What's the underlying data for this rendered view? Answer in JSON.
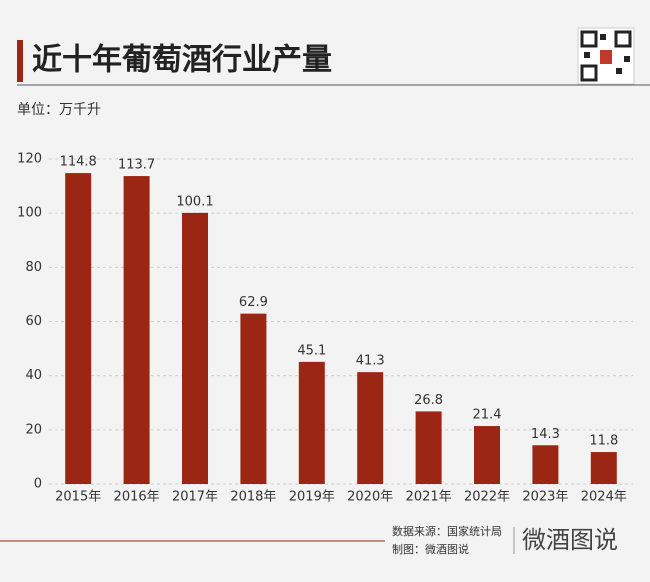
{
  "chart_data": {
    "type": "bar",
    "title": "近十年葡萄酒行业产量",
    "unit": "单位：万千升",
    "categories": [
      "2015年",
      "2016年",
      "2017年",
      "2018年",
      "2019年",
      "2020年",
      "2021年",
      "2022年",
      "2023年",
      "2024年"
    ],
    "values": [
      114.8,
      113.7,
      100.1,
      62.9,
      45.1,
      41.3,
      26.8,
      21.4,
      14.3,
      11.8
    ],
    "color": "#9c2614",
    "ylim": [
      0,
      120
    ],
    "yticks": [
      0,
      20,
      40,
      60,
      80,
      100,
      120
    ],
    "grid": true,
    "source": "数据来源：国家统计局",
    "credit": "制图：微酒图说",
    "logo": "微酒图说"
  }
}
